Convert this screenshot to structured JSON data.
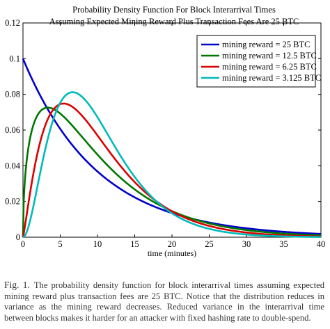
{
  "chart_data": {
    "type": "line",
    "title_lines": [
      "Probability Density Function For Block Interarrival Times",
      "Assuming Expected Mining Reward Plus Transaction Fees Are 25 BTC"
    ],
    "xlabel": "time (minutes)",
    "ylabel": "",
    "xlim": [
      0,
      40
    ],
    "ylim": [
      0,
      0.12
    ],
    "xticks": [
      "0",
      "5",
      "10",
      "15",
      "20",
      "25",
      "30",
      "35",
      "40"
    ],
    "yticks": [
      "0",
      "0.02",
      "0.04",
      "0.06",
      "0.08",
      "0.1",
      "0.12"
    ],
    "grid": false,
    "legend_position": "top-right",
    "series": [
      {
        "name": "mining reward = 25 BTC",
        "color": "#0000cc",
        "gamma_shape": 1,
        "mean_minutes": 10
      },
      {
        "name": "mining reward = 12.5 BTC",
        "color": "#007700",
        "gamma_shape": 1.5,
        "mean_minutes": 10
      },
      {
        "name": "mining reward = 6.25 BTC",
        "color": "#dd0000",
        "gamma_shape": 2.2,
        "mean_minutes": 10
      },
      {
        "name": "mining reward = 3.125 BTC",
        "color": "#00bbbb",
        "gamma_shape": 3,
        "mean_minutes": 10
      }
    ]
  },
  "caption": {
    "label": "Fig. 1.",
    "text": "The probability density function for block interarrival times assuming expected mining reward plus transaction fees are 25 BTC. Notice that the distribution reduces in variance as the mining reward decreases. Reduced variance in the interarrival time between blocks makes it harder for an attacker with fixed hashing rate to double-spend."
  }
}
